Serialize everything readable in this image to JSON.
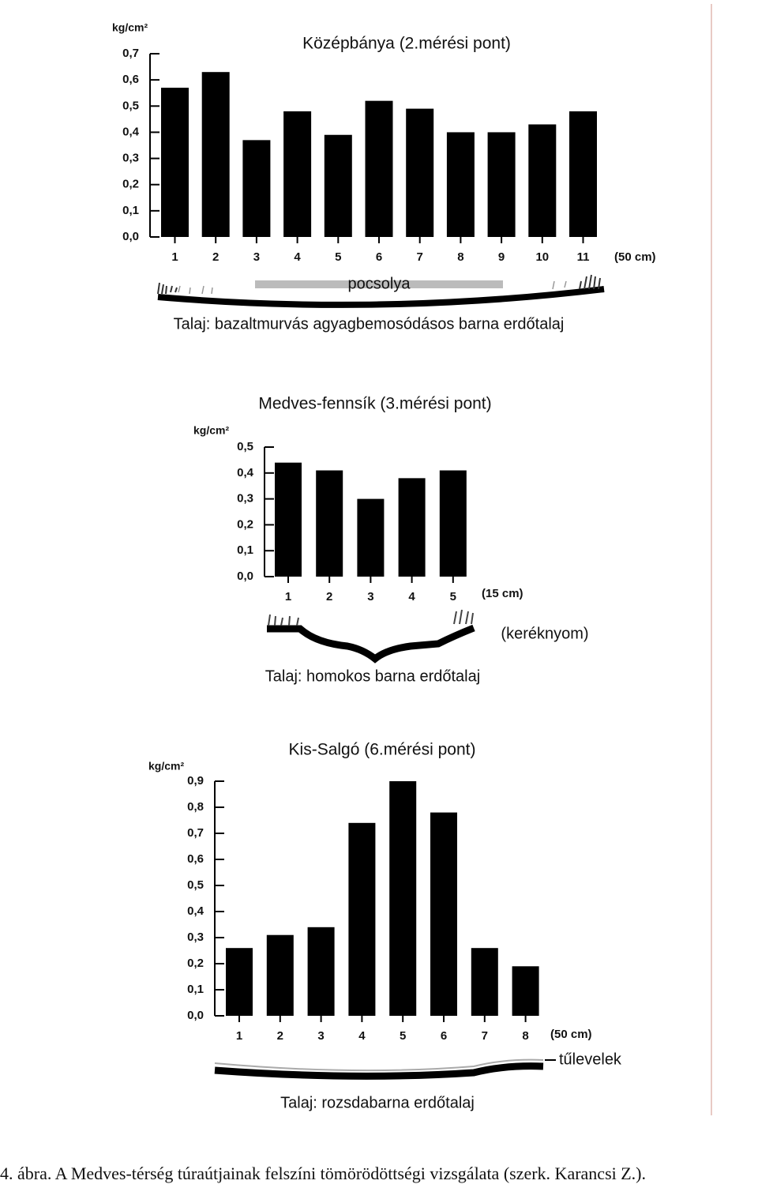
{
  "chart_data": [
    {
      "type": "bar",
      "title": "Középbánya (2.mérési pont)",
      "y_label": "kg/cm²",
      "x_label": "(50 cm)",
      "annotations": [
        "pocsolya",
        "Talaj: bazaltmurvás agyagbemosódásos barna erdőtalaj"
      ],
      "categories": [
        "1",
        "2",
        "3",
        "4",
        "5",
        "6",
        "7",
        "8",
        "9",
        "10",
        "11"
      ],
      "values": [
        0.57,
        0.63,
        0.37,
        0.48,
        0.39,
        0.52,
        0.49,
        0.4,
        0.4,
        0.43,
        0.48
      ],
      "color": "#000000",
      "ylim": [
        0,
        0.7
      ],
      "yticks": [
        {
          "value": 0,
          "label": "0,0"
        },
        {
          "value": 0.1,
          "label": "0,1"
        },
        {
          "value": 0.2,
          "label": "0,2"
        },
        {
          "value": 0.3,
          "label": "0,3"
        },
        {
          "value": 0.4,
          "label": "0,4"
        },
        {
          "value": 0.5,
          "label": "0,5"
        },
        {
          "value": 0.6,
          "label": "0,6"
        },
        {
          "value": 0.7,
          "label": "0,7"
        }
      ]
    },
    {
      "type": "bar",
      "title": "Medves-fennsík (3.mérési pont)",
      "y_label": "kg/cm²",
      "x_label": "(15 cm)",
      "annotations": [
        "(keréknyom)",
        "Talaj: homokos barna erdőtalaj"
      ],
      "categories": [
        "1",
        "2",
        "3",
        "4",
        "5"
      ],
      "values": [
        0.44,
        0.41,
        0.3,
        0.38,
        0.41
      ],
      "color": "#000000",
      "ylim": [
        0,
        0.5
      ],
      "yticks": [
        {
          "value": 0,
          "label": "0,0"
        },
        {
          "value": 0.1,
          "label": "0,1"
        },
        {
          "value": 0.2,
          "label": "0,2"
        },
        {
          "value": 0.3,
          "label": "0,3"
        },
        {
          "value": 0.4,
          "label": "0,4"
        },
        {
          "value": 0.5,
          "label": "0,5"
        }
      ]
    },
    {
      "type": "bar",
      "title": "Kis-Salgó (6.mérési pont)",
      "y_label": "kg/cm²",
      "x_label": "(50 cm)",
      "annotations": [
        "tűlevelek",
        "Talaj: rozsdabarna erdőtalaj"
      ],
      "categories": [
        "1",
        "2",
        "3",
        "4",
        "5",
        "6",
        "7",
        "8"
      ],
      "values": [
        0.26,
        0.31,
        0.34,
        0.74,
        0.9,
        0.78,
        0.26,
        0.19
      ],
      "color": "#000000",
      "ylim": [
        0,
        0.9
      ],
      "yticks": [
        {
          "value": 0,
          "label": "0,0"
        },
        {
          "value": 0.1,
          "label": "0,1"
        },
        {
          "value": 0.2,
          "label": "0,2"
        },
        {
          "value": 0.3,
          "label": "0,3"
        },
        {
          "value": 0.4,
          "label": "0,4"
        },
        {
          "value": 0.5,
          "label": "0,5"
        },
        {
          "value": 0.6,
          "label": "0,6"
        },
        {
          "value": 0.7,
          "label": "0,7"
        },
        {
          "value": 0.8,
          "label": "0,8"
        },
        {
          "value": 0.9,
          "label": "0,9"
        }
      ]
    }
  ],
  "caption": "4. ábra. A Medves-térség túraútjainak felszíni tömörödöttségi vizsgálata (szerk. Karancsi Z.)."
}
